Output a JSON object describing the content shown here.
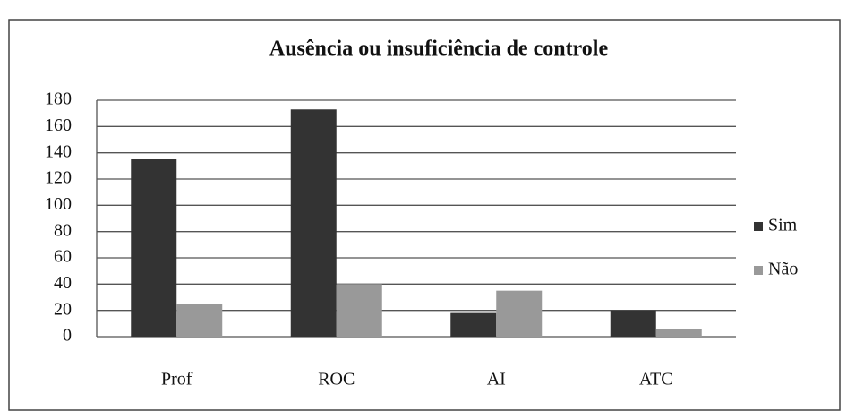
{
  "chart_data": {
    "type": "bar",
    "title": "Ausência ou insuficiência de controle",
    "categories": [
      "Prof",
      "ROC",
      "AI",
      "ATC"
    ],
    "series": [
      {
        "name": "Sim",
        "color": "#333333",
        "values": [
          135,
          173,
          18,
          20
        ]
      },
      {
        "name": "Não",
        "color": "#999999",
        "values": [
          25,
          40,
          35,
          6
        ]
      }
    ],
    "ylim": [
      0,
      180
    ],
    "yticks": [
      0,
      20,
      40,
      60,
      80,
      100,
      120,
      140,
      160,
      180
    ],
    "grid": true,
    "legend": "right"
  }
}
